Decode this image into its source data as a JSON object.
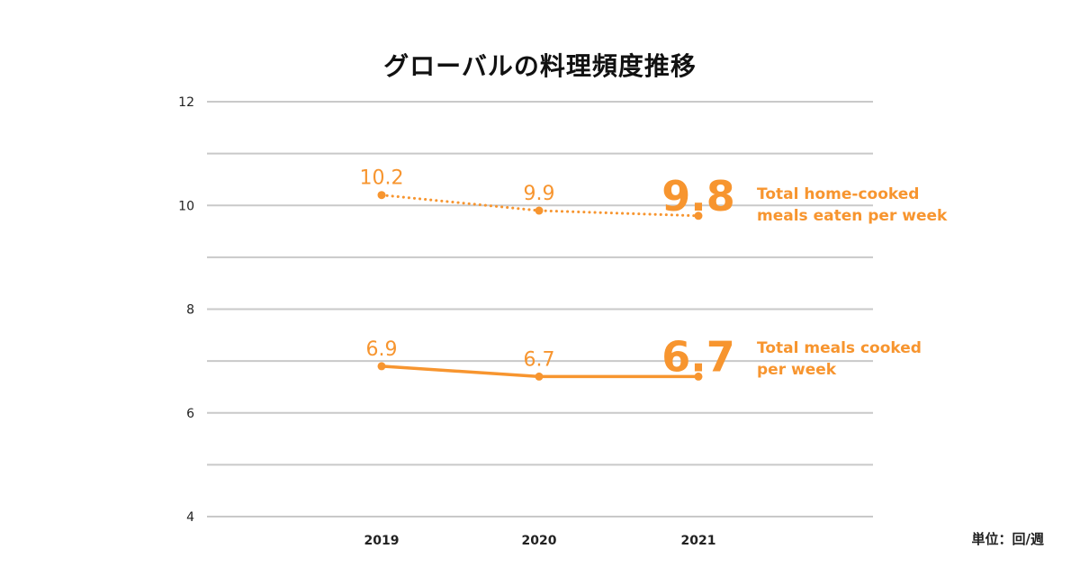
{
  "title": "グローバルの料理頻度推移",
  "unit": "単位：回/週",
  "colors": {
    "accent": "#f7952f",
    "grid": "#c9c9c9",
    "text": "#222222"
  },
  "chart_data": {
    "type": "line",
    "title": "グローバルの料理頻度推移",
    "categories": [
      "2019",
      "2020",
      "2021"
    ],
    "ylim": [
      4,
      12
    ],
    "yticks": [
      "12",
      "10",
      "8",
      "6",
      "4"
    ],
    "grid": true,
    "series": [
      {
        "name": "Total home-cooked meals eaten per week",
        "legend_lines": [
          "Total home-cooked",
          "meals eaten per week"
        ],
        "style": "dotted",
        "values": [
          10.2,
          9.9,
          9.8
        ],
        "labels": [
          "10.2",
          "9.9",
          "9.8"
        ]
      },
      {
        "name": "Total meals cooked per week",
        "legend_lines": [
          "Total meals cooked",
          "per week"
        ],
        "style": "solid",
        "values": [
          6.9,
          6.7,
          6.7
        ],
        "labels": [
          "6.9",
          "6.7",
          "6.7"
        ]
      }
    ]
  }
}
